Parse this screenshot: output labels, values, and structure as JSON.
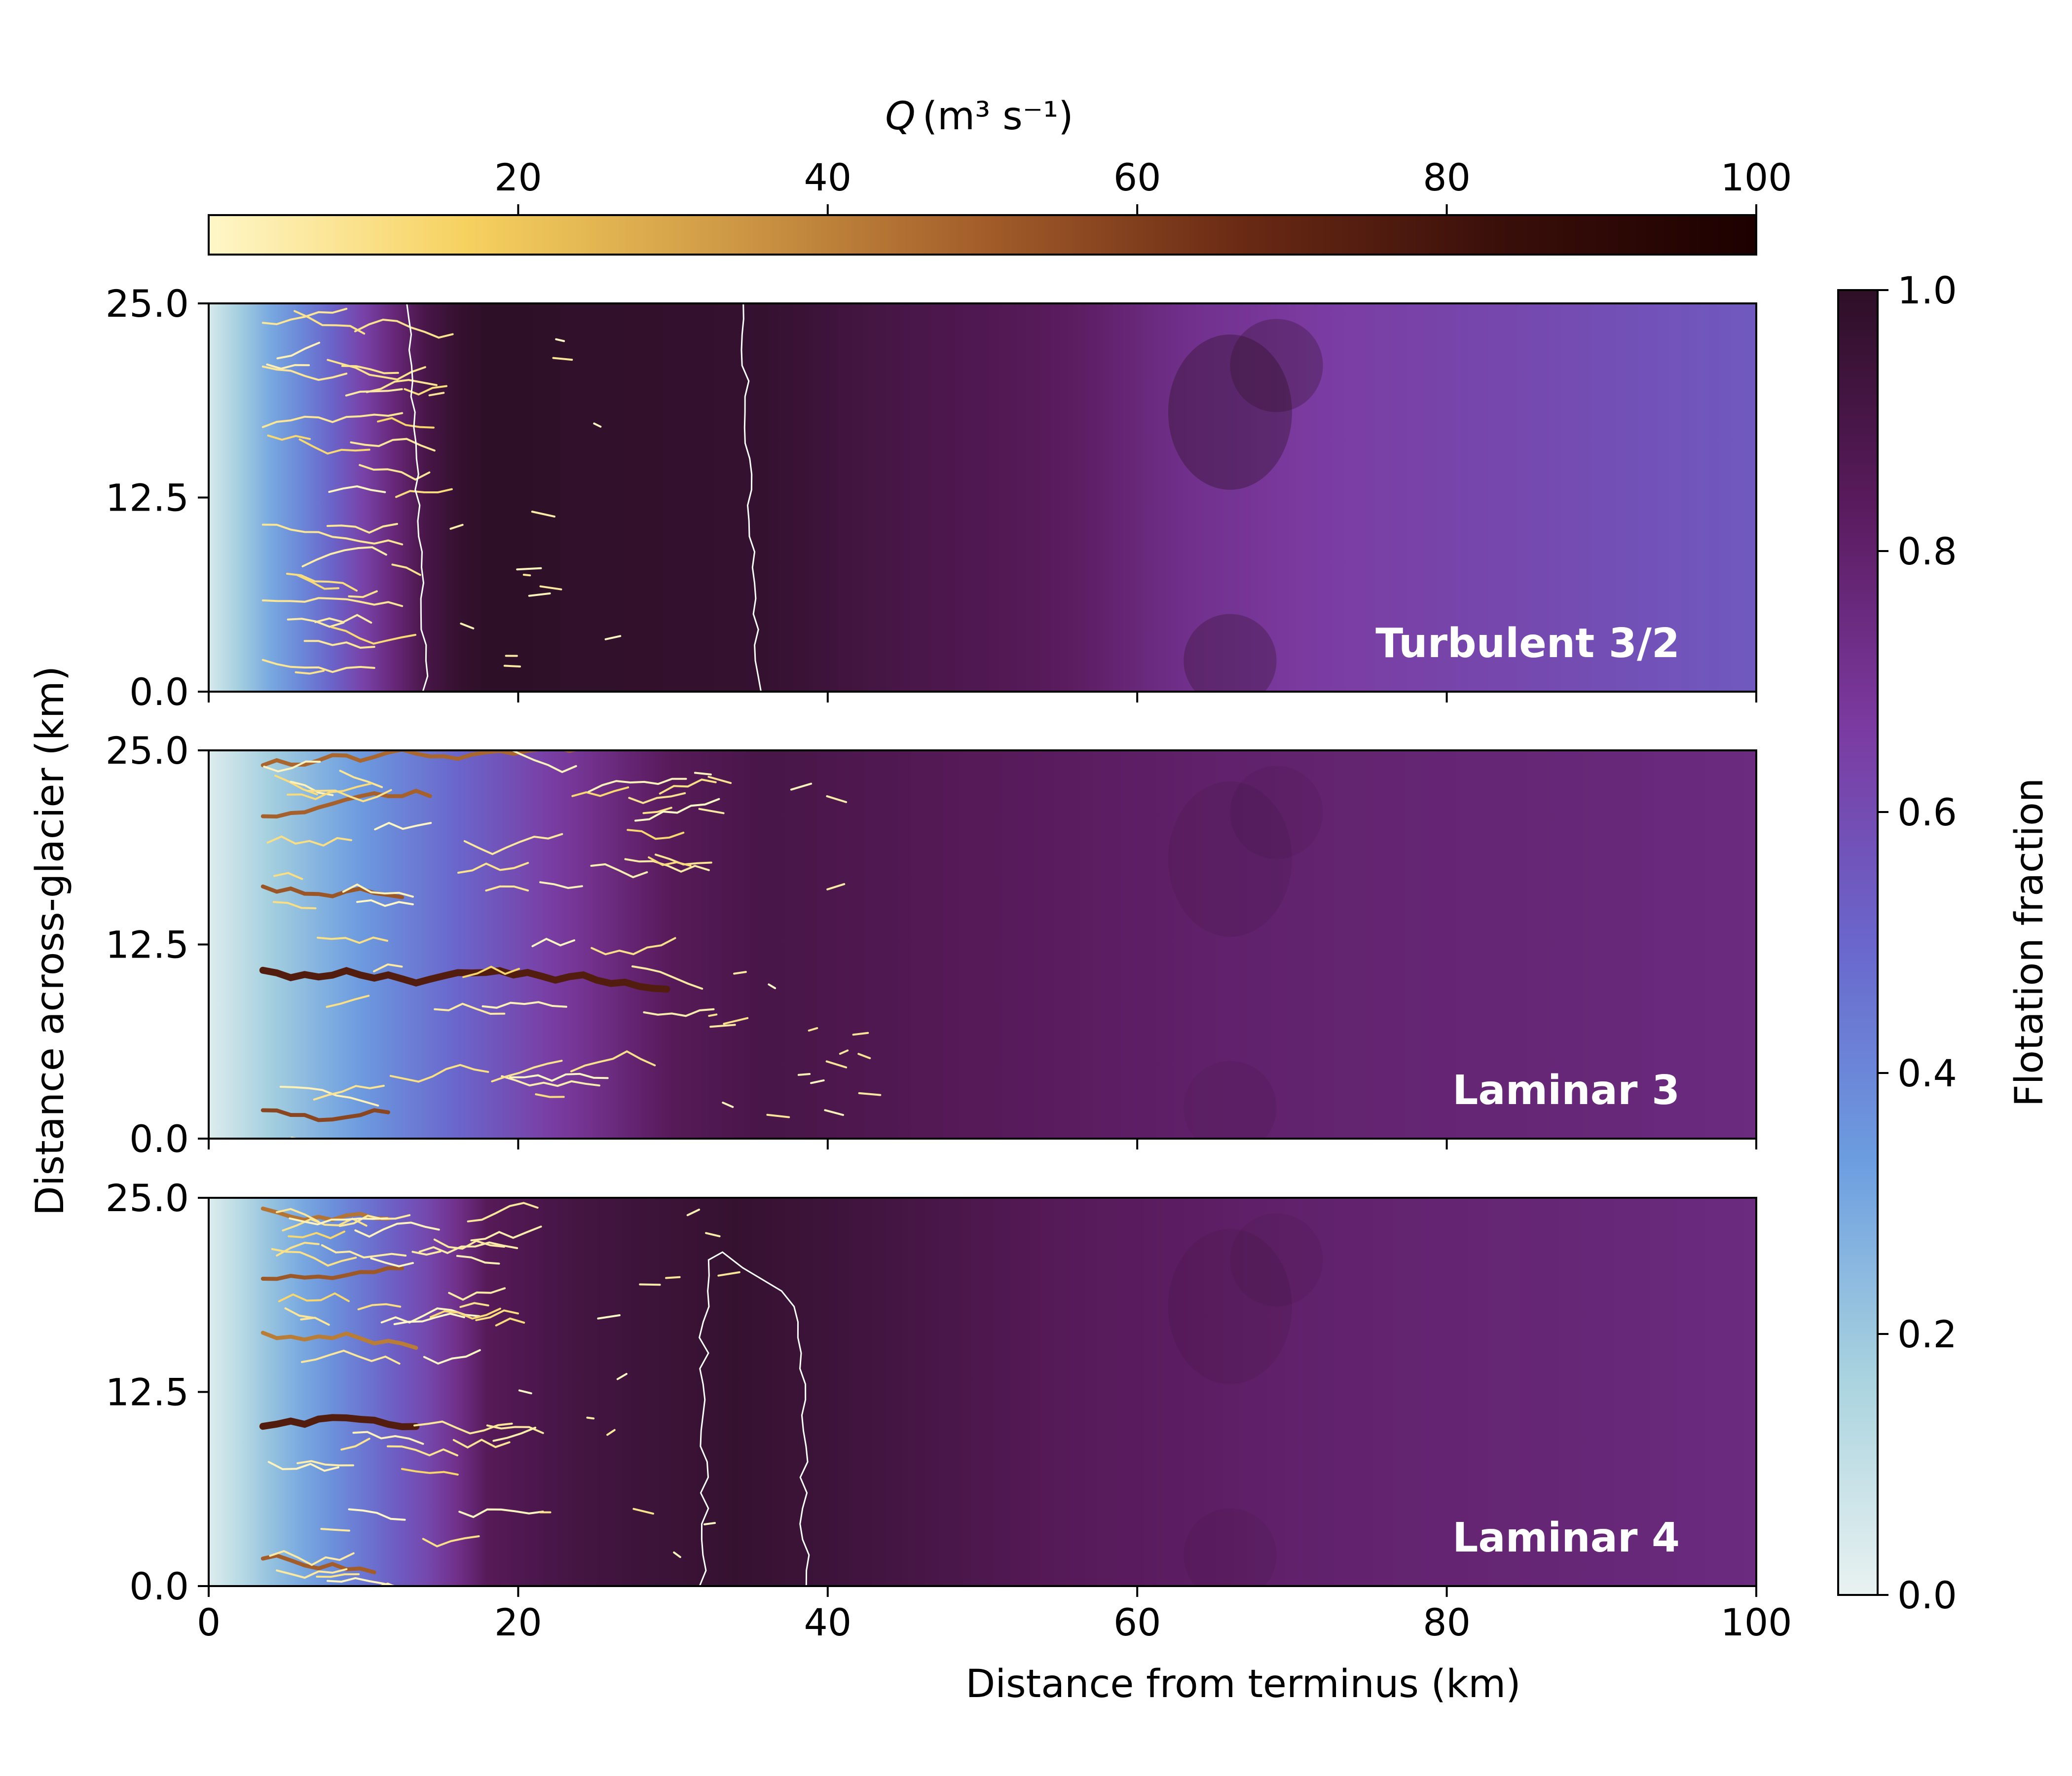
{
  "chart_data": {
    "type": "heatmap",
    "x_axis": {
      "label": "Distance from terminus (km)",
      "range": [
        0,
        100
      ],
      "ticks": [
        0,
        20,
        40,
        60,
        80,
        100
      ],
      "tick_labels": [
        "0",
        "20",
        "40",
        "60",
        "80",
        "100"
      ]
    },
    "y_axis": {
      "label": "Distance across-glacier (km)",
      "range": [
        0,
        25
      ],
      "ticks": [
        0,
        12.5,
        25
      ],
      "tick_labels": [
        "0.0",
        "12.5",
        "25.0"
      ]
    },
    "colorbar_discharge": {
      "label_symbol": "Q",
      "label_units": "(m³ s⁻¹)",
      "range": [
        0,
        100
      ],
      "ticks": [
        20,
        40,
        60,
        80,
        100
      ],
      "tick_labels": [
        "20",
        "40",
        "60",
        "80",
        "100"
      ],
      "orientation": "horizontal",
      "colors": [
        "#fff7c8",
        "#f6d15f",
        "#cf9a45",
        "#a35d2a",
        "#6a2a14",
        "#3a0f0a",
        "#1d0000"
      ]
    },
    "colorbar_flotation": {
      "label": "Flotation fraction",
      "range": [
        0,
        1
      ],
      "ticks": [
        0,
        0.2,
        0.4,
        0.6,
        0.8,
        1.0
      ],
      "tick_labels": [
        "0.0",
        "0.2",
        "0.4",
        "0.6",
        "0.8",
        "1.0"
      ],
      "orientation": "vertical",
      "colors": [
        "#e9f2f1",
        "#a9d3df",
        "#6c9de0",
        "#6a66cc",
        "#7b3aa0",
        "#5a1b5e",
        "#2d0f26"
      ]
    },
    "panels": [
      {
        "name": "Turbulent 3/2",
        "flotation_profile": [
          [
            0,
            0.05
          ],
          [
            3,
            0.25
          ],
          [
            7,
            0.45
          ],
          [
            11,
            0.7
          ],
          [
            14,
            0.9
          ],
          [
            17,
            1.0
          ],
          [
            36,
            0.97
          ],
          [
            45,
            0.9
          ],
          [
            55,
            0.84
          ],
          [
            63,
            0.72
          ],
          [
            72,
            0.66
          ],
          [
            100,
            0.55
          ]
        ],
        "contour_x": [
          [
            14,
            35.5
          ]
        ],
        "channels_reach_km": 13,
        "trunk_y": [
          2,
          6,
          11,
          17,
          21,
          24
        ]
      },
      {
        "name": "Laminar 3",
        "flotation_profile": [
          [
            0,
            0.03
          ],
          [
            4,
            0.18
          ],
          [
            12,
            0.4
          ],
          [
            22,
            0.65
          ],
          [
            30,
            0.85
          ],
          [
            36,
            0.9
          ],
          [
            50,
            0.85
          ],
          [
            65,
            0.8
          ],
          [
            100,
            0.75
          ]
        ],
        "contour_x": [],
        "channels_reach_km": 30,
        "trunk_y": [
          2,
          10.5,
          16.5,
          20.5,
          24
        ]
      },
      {
        "name": "Laminar 4",
        "flotation_profile": [
          [
            0,
            0.03
          ],
          [
            4,
            0.22
          ],
          [
            10,
            0.45
          ],
          [
            15,
            0.65
          ],
          [
            18,
            0.85
          ],
          [
            24,
            0.92
          ],
          [
            34,
            0.97
          ],
          [
            42,
            0.93
          ],
          [
            55,
            0.85
          ],
          [
            70,
            0.8
          ],
          [
            100,
            0.75
          ]
        ],
        "contour_x": [
          [
            32,
            38.5
          ]
        ],
        "channels_reach_km": 19,
        "trunk_y": [
          2,
          10,
          16.5,
          20,
          24
        ]
      }
    ]
  }
}
